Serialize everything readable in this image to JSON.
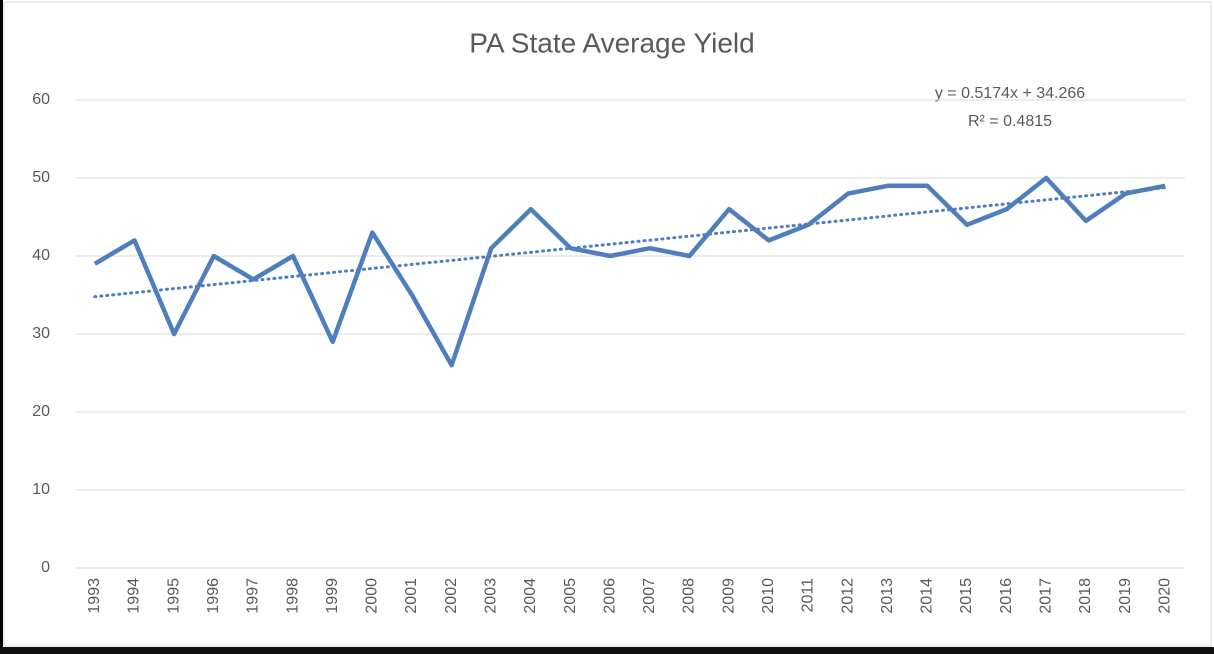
{
  "chart_data": {
    "type": "line",
    "title": "PA State Average Yield",
    "categories": [
      "1993",
      "1994",
      "1995",
      "1996",
      "1997",
      "1998",
      "1999",
      "2000",
      "2001",
      "2002",
      "2003",
      "2004",
      "2005",
      "2006",
      "2007",
      "2008",
      "2009",
      "2010",
      "2011",
      "2012",
      "2013",
      "2014",
      "2015",
      "2016",
      "2017",
      "2018",
      "2019",
      "2020"
    ],
    "series": [
      {
        "name": "Yield",
        "color": "#4f7ebf",
        "values": [
          39,
          42,
          30,
          40,
          37,
          40,
          29,
          43,
          35,
          26,
          41,
          46,
          41,
          40,
          41,
          40,
          46,
          42,
          44,
          48,
          49,
          49,
          44,
          46,
          50,
          44.5,
          48,
          49
        ]
      }
    ],
    "trendline": {
      "slope": 0.5174,
      "intercept": 34.266,
      "color": "#4f7ebf",
      "equation": "y = 0.5174x + 34.266",
      "r_squared": "R² = 0.4815"
    },
    "ylim": [
      0,
      60
    ],
    "yticks": [
      0,
      10,
      20,
      30,
      40,
      50,
      60
    ],
    "grid": true
  }
}
